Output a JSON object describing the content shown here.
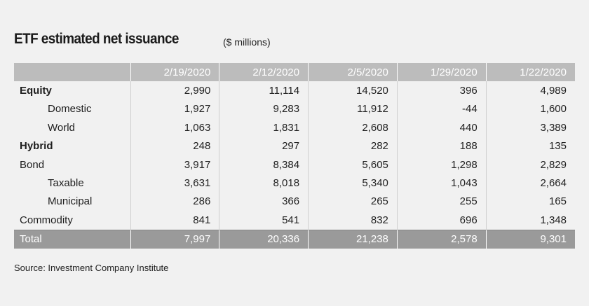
{
  "title": "ETF estimated net issuance",
  "subtitle": "($ millions)",
  "table": {
    "headers": [
      "",
      "2/19/2020",
      "2/12/2020",
      "2/5/2020",
      "1/29/2020",
      "1/22/2020"
    ],
    "rows": [
      {
        "label": "Equity",
        "style": "bold",
        "values": [
          "2,990",
          "11,114",
          "14,520",
          "396",
          "4,989"
        ]
      },
      {
        "label": "Domestic",
        "style": "indent",
        "values": [
          "1,927",
          "9,283",
          "11,912",
          "-44",
          "1,600"
        ]
      },
      {
        "label": "World",
        "style": "indent",
        "values": [
          "1,063",
          "1,831",
          "2,608",
          "440",
          "3,389"
        ]
      },
      {
        "label": "Hybrid",
        "style": "bold",
        "values": [
          "248",
          "297",
          "282",
          "188",
          "135"
        ]
      },
      {
        "label": "Bond",
        "style": "plain",
        "values": [
          "3,917",
          "8,384",
          "5,605",
          "1,298",
          "2,829"
        ]
      },
      {
        "label": "Taxable",
        "style": "indent",
        "values": [
          "3,631",
          "8,018",
          "5,340",
          "1,043",
          "2,664"
        ]
      },
      {
        "label": "Municipal",
        "style": "indent",
        "values": [
          "286",
          "366",
          "265",
          "255",
          "165"
        ]
      },
      {
        "label": "Commodity",
        "style": "plain",
        "values": [
          "841",
          "541",
          "832",
          "696",
          "1,348"
        ]
      },
      {
        "label": "Total",
        "style": "total",
        "values": [
          "7,997",
          "20,336",
          "21,238",
          "2,578",
          "9,301"
        ]
      }
    ]
  },
  "source": "Source: Investment Company Institute"
}
